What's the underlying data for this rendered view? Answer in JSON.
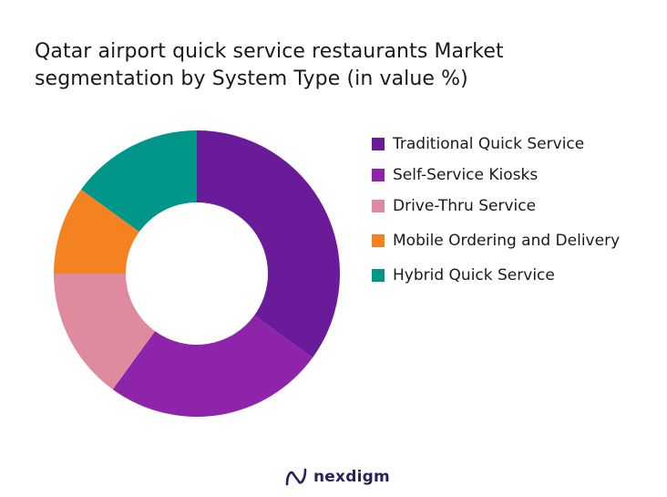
{
  "chart_data": {
    "type": "pie",
    "title": "Qatar airport quick service restaurants Market segmentation by System Type (in value %)",
    "title_lines": [
      "Qatar airport quick service restaurants Market",
      "segmentation by System Type (in value %)"
    ],
    "donut": true,
    "legend_position": "right",
    "series": [
      {
        "name": "Traditional Quick Service",
        "value": 35,
        "color": "#6a1b9a"
      },
      {
        "name": "Self-Service Kiosks",
        "value": 25,
        "color": "#8e24aa"
      },
      {
        "name": "Drive-Thru Service",
        "value": 15,
        "color": "#e08aa0"
      },
      {
        "name": "Mobile Ordering and Delivery",
        "value": 10,
        "color": "#f58220"
      },
      {
        "name": "Hybrid Quick Service",
        "value": 15,
        "color": "#00968a"
      }
    ]
  },
  "brand": {
    "name": "nexdigm",
    "color": "#2b1f5c"
  }
}
